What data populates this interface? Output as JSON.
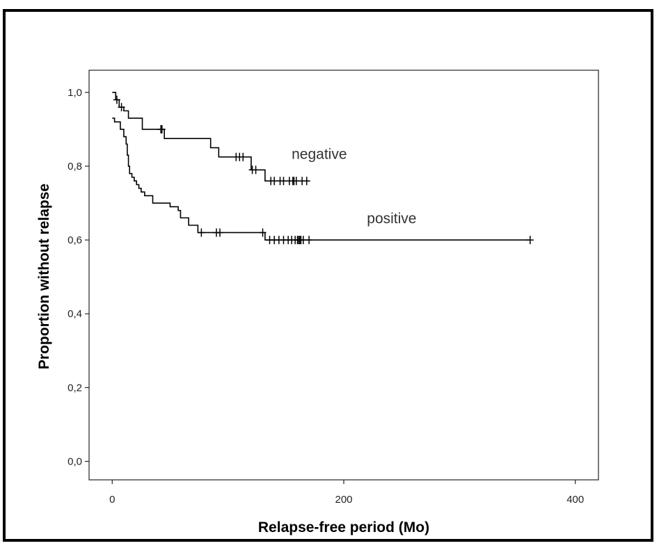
{
  "chart_data": {
    "type": "line",
    "subtype": "kaplan-meier",
    "title": "",
    "xlabel": "Relapse-free period (Mo)",
    "ylabel": "Proportion without relapse",
    "xlim": [
      -20,
      420
    ],
    "ylim": [
      -0.05,
      1.06
    ],
    "x_ticks": [
      0,
      200,
      400
    ],
    "x_tick_labels": [
      "0",
      "200",
      "400"
    ],
    "y_ticks": [
      0.0,
      0.2,
      0.4,
      0.6,
      0.8,
      1.0
    ],
    "y_tick_labels": [
      "0,0",
      "0,2",
      "0,4",
      "0,6",
      "0,8",
      "1,0"
    ],
    "grid": false,
    "legend": "none",
    "line_color": "#000000",
    "annotations": [
      {
        "text": "negative",
        "x": 155,
        "y": 0.82
      },
      {
        "text": "positive",
        "x": 220,
        "y": 0.645
      }
    ],
    "series": [
      {
        "label": "negative",
        "steps": [
          [
            0,
            1.0
          ],
          [
            3,
            0.98
          ],
          [
            6,
            0.96
          ],
          [
            10,
            0.95
          ],
          [
            14,
            0.93
          ],
          [
            25,
            0.93
          ],
          [
            26,
            0.9
          ],
          [
            44,
            0.9
          ],
          [
            45,
            0.875
          ],
          [
            82,
            0.875
          ],
          [
            85,
            0.85
          ],
          [
            90,
            0.85
          ],
          [
            92,
            0.825
          ],
          [
            118,
            0.825
          ],
          [
            120,
            0.79
          ],
          [
            130,
            0.79
          ],
          [
            132,
            0.76
          ],
          [
            170,
            0.76
          ]
        ],
        "censored": [
          [
            4,
            0.98
          ],
          [
            8,
            0.96
          ],
          [
            42,
            0.9
          ],
          [
            43,
            0.9
          ],
          [
            107,
            0.825
          ],
          [
            110,
            0.825
          ],
          [
            113,
            0.825
          ],
          [
            121,
            0.79
          ],
          [
            124,
            0.79
          ],
          [
            137,
            0.76
          ],
          [
            140,
            0.76
          ],
          [
            145,
            0.76
          ],
          [
            148,
            0.76
          ],
          [
            153,
            0.76
          ],
          [
            156,
            0.76
          ],
          [
            157,
            0.76
          ],
          [
            159,
            0.76
          ],
          [
            164,
            0.76
          ],
          [
            168,
            0.76
          ]
        ]
      },
      {
        "label": "positive",
        "steps": [
          [
            0,
            0.93
          ],
          [
            2,
            0.92
          ],
          [
            5,
            0.92
          ],
          [
            7,
            0.9
          ],
          [
            10,
            0.88
          ],
          [
            12,
            0.86
          ],
          [
            13,
            0.83
          ],
          [
            14,
            0.8
          ],
          [
            15,
            0.78
          ],
          [
            17,
            0.77
          ],
          [
            19,
            0.76
          ],
          [
            21,
            0.75
          ],
          [
            23,
            0.74
          ],
          [
            25,
            0.73
          ],
          [
            28,
            0.72
          ],
          [
            33,
            0.72
          ],
          [
            35,
            0.7
          ],
          [
            48,
            0.7
          ],
          [
            50,
            0.69
          ],
          [
            55,
            0.69
          ],
          [
            57,
            0.68
          ],
          [
            59,
            0.66
          ],
          [
            63,
            0.66
          ],
          [
            66,
            0.64
          ],
          [
            72,
            0.64
          ],
          [
            74,
            0.62
          ],
          [
            130,
            0.62
          ],
          [
            132,
            0.6
          ],
          [
            360,
            0.6
          ]
        ],
        "censored": [
          [
            77,
            0.62
          ],
          [
            90,
            0.62
          ],
          [
            93,
            0.62
          ],
          [
            130,
            0.62
          ],
          [
            136,
            0.6
          ],
          [
            140,
            0.6
          ],
          [
            144,
            0.6
          ],
          [
            148,
            0.6
          ],
          [
            152,
            0.6
          ],
          [
            155,
            0.6
          ],
          [
            158,
            0.6
          ],
          [
            160,
            0.6
          ],
          [
            161,
            0.6
          ],
          [
            162,
            0.6
          ],
          [
            163,
            0.6
          ],
          [
            165,
            0.6
          ],
          [
            170,
            0.6
          ],
          [
            361,
            0.6
          ]
        ]
      }
    ]
  }
}
